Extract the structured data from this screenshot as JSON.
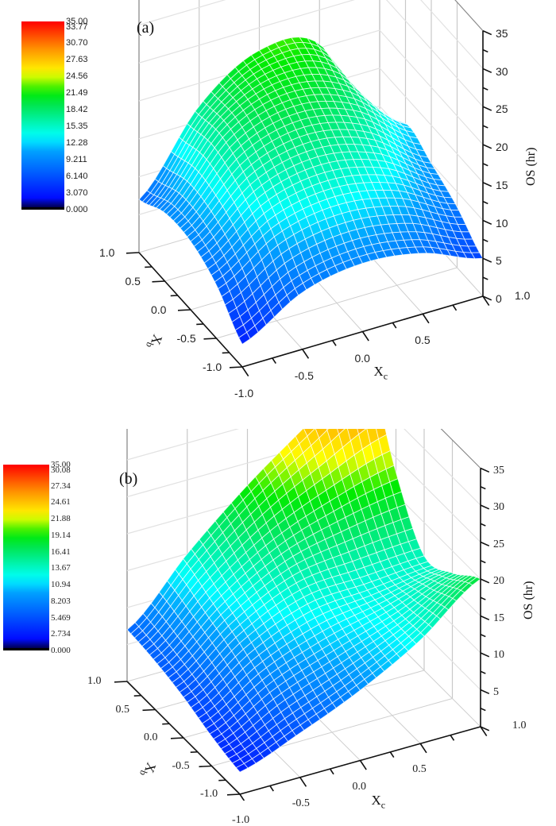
{
  "chart_data": [
    {
      "type": "surface3d",
      "panel_label": "(a)",
      "title": "",
      "xlabel": "Xc",
      "ylabel": "Xb",
      "zlabel": "OS (hr)",
      "x_ticks": [
        "-1.0",
        "-0.5",
        "0.0",
        "0.5",
        "1.0"
      ],
      "y_ticks": [
        "-1.0",
        "-0.5",
        "0.0",
        "0.5",
        "1.0"
      ],
      "z_ticks": [
        "0",
        "5",
        "10",
        "15",
        "20",
        "25",
        "30",
        "35"
      ],
      "xlim": [
        -1,
        1
      ],
      "ylim": [
        -1,
        1
      ],
      "zlim": [
        0,
        35
      ],
      "grid": true,
      "colorbar": {
        "labels": [
          "35.00",
          "33.77",
          "30.70",
          "27.63",
          "24.56",
          "21.49",
          "18.42",
          "15.35",
          "12.28",
          "9.211",
          "6.140",
          "3.070",
          "0.000"
        ],
        "colormap": "rainbow",
        "min": 0,
        "max": 35
      },
      "surface_model": {
        "description": "Dome-shaped response surface, max ~23 near Xc≈-0.3, Xb≈0.6",
        "x": [
          -1.0,
          -0.5,
          0.0,
          0.5,
          1.0
        ],
        "y": [
          -1.0,
          -0.5,
          0.0,
          0.5,
          1.0
        ],
        "z": [
          [
            3.0,
            7.5,
            9.0,
            8.0,
            5.0
          ],
          [
            7.0,
            12.0,
            13.5,
            12.0,
            8.0
          ],
          [
            9.0,
            15.5,
            17.5,
            15.5,
            10.0
          ],
          [
            9.0,
            17.5,
            20.5,
            18.5,
            11.5
          ],
          [
            7.0,
            17.0,
            22.0,
            20.5,
            6.0
          ]
        ],
        "z_indexing": "z[yi][xi]"
      }
    },
    {
      "type": "surface3d",
      "panel_label": "(b)",
      "title": "",
      "xlabel": "Xc",
      "ylabel": "Xb",
      "zlabel": "OS (hr)",
      "x_ticks": [
        "-1.0",
        "-0.5",
        "0.0",
        "0.5",
        "1.0"
      ],
      "y_ticks": [
        "-1.0",
        "-0.5",
        "0.0",
        "0.5",
        "1.0"
      ],
      "z_ticks": [
        "5",
        "10",
        "15",
        "20",
        "25",
        "30",
        "35"
      ],
      "xlim": [
        -1,
        1
      ],
      "ylim": [
        -1,
        1
      ],
      "zlim": [
        0,
        35
      ],
      "grid": true,
      "colorbar": {
        "labels": [
          "35.00",
          "30.08",
          "27.34",
          "24.61",
          "21.88",
          "19.14",
          "16.41",
          "13.67",
          "10.94",
          "8.203",
          "5.469",
          "2.734",
          "0.000"
        ],
        "colormap": "rainbow",
        "min": 0,
        "max": 35
      },
      "surface_model": {
        "description": "Saddle-like rising surface, max ~34 at Xc=1, Xb=1 back corner; ~20 at Xc=1, Xb=-1",
        "x": [
          -1.0,
          -0.5,
          0.0,
          0.5,
          1.0
        ],
        "y": [
          -1.0,
          -0.5,
          0.0,
          0.5,
          1.0
        ],
        "z": [
          [
            3.0,
            6.0,
            9.5,
            14.0,
            20.0
          ],
          [
            4.0,
            8.5,
            11.5,
            14.0,
            17.0
          ],
          [
            5.5,
            11.0,
            14.5,
            15.0,
            15.5
          ],
          [
            6.5,
            13.0,
            18.0,
            21.0,
            23.0
          ],
          [
            7.0,
            15.0,
            22.0,
            28.0,
            34.0
          ]
        ],
        "z_indexing": "z[yi][xi]"
      }
    }
  ]
}
